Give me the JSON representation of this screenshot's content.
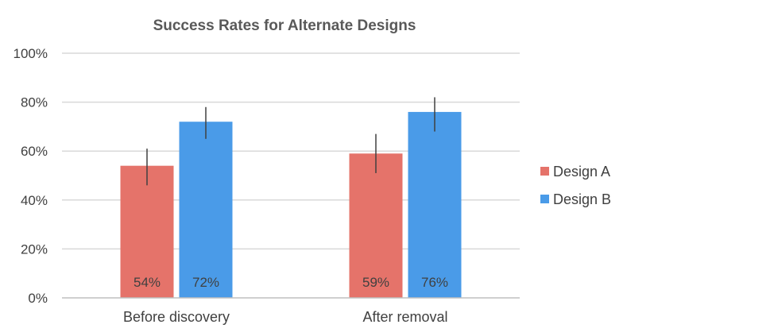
{
  "chart_data": {
    "type": "bar",
    "title": "Success Rates for Alternate Designs",
    "categories": [
      "Before discovery",
      "After removal"
    ],
    "series": [
      {
        "name": "Design A",
        "values": [
          0.54,
          0.59
        ],
        "labels": [
          "54%",
          "59%"
        ],
        "err_low": [
          0.46,
          0.51
        ],
        "err_high": [
          0.61,
          0.67
        ],
        "color": "#E5736A"
      },
      {
        "name": "Design B",
        "values": [
          0.72,
          0.76
        ],
        "labels": [
          "72%",
          "76%"
        ],
        "err_low": [
          0.65,
          0.68
        ],
        "err_high": [
          0.78,
          0.82
        ],
        "color": "#4A9BE8"
      }
    ],
    "ylim": [
      0,
      1
    ],
    "yticks": [
      0,
      0.2,
      0.4,
      0.6,
      0.8,
      1.0
    ],
    "ytick_labels": [
      "0%",
      "20%",
      "40%",
      "60%",
      "80%",
      "100%"
    ],
    "xlabel": "",
    "ylabel": "",
    "grid": true,
    "legend_position": "right",
    "colors": {
      "grid": "#D9D9D9",
      "axis": "#BFBFBF",
      "error_bar": "#404040"
    }
  }
}
